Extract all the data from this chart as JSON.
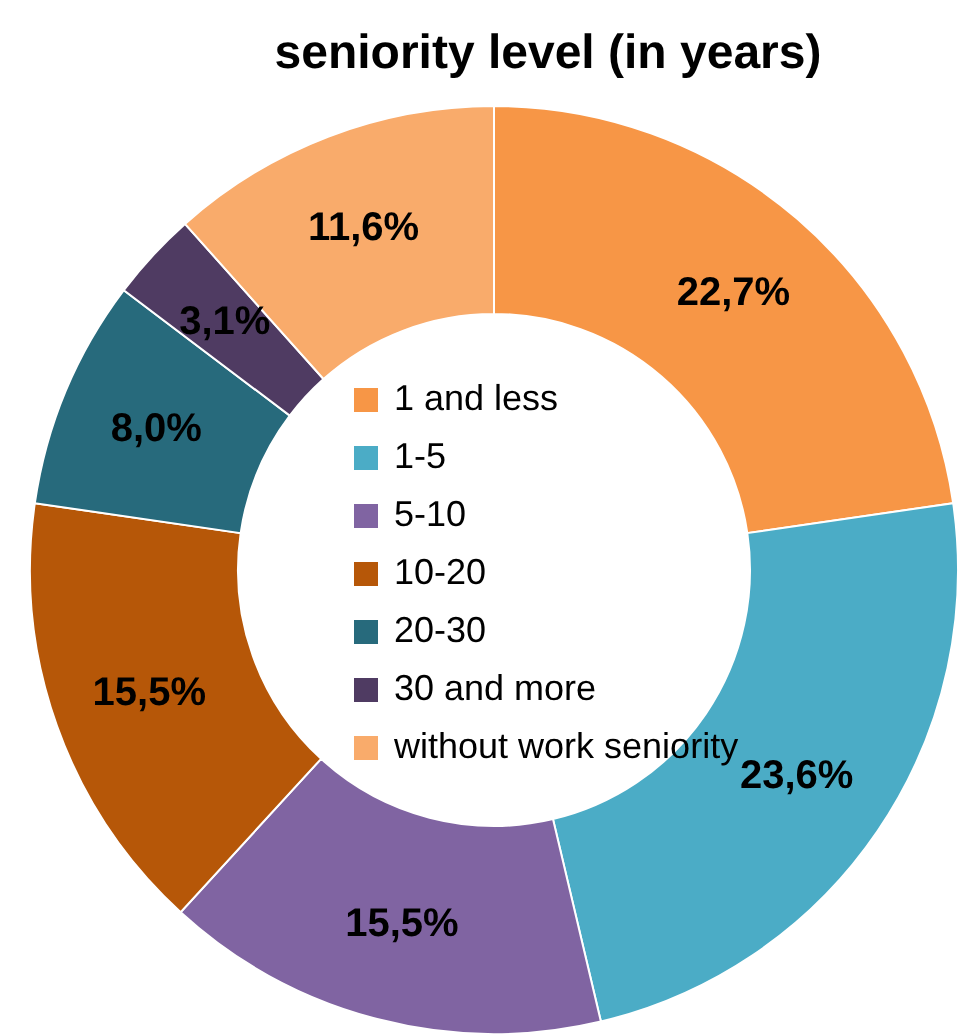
{
  "chart_data": {
    "type": "donut",
    "title": "seniority level (in years)",
    "categories": [
      "1 and less",
      "1-5",
      "5-10",
      "10-20",
      "20-30",
      "30 and more",
      "without work seniority"
    ],
    "values": [
      22.7,
      23.6,
      15.5,
      15.5,
      8.0,
      3.1,
      11.6
    ],
    "colors": [
      "#f79646",
      "#4bacc6",
      "#8064a2",
      "#b65708",
      "#276a7c",
      "#4f3b62",
      "#f9ab6b"
    ],
    "value_labels": [
      "22,7%",
      "23,6%",
      "15,5%",
      "15,5%",
      "8,0%",
      "3,1%",
      "11,6%"
    ],
    "legend": "center"
  }
}
